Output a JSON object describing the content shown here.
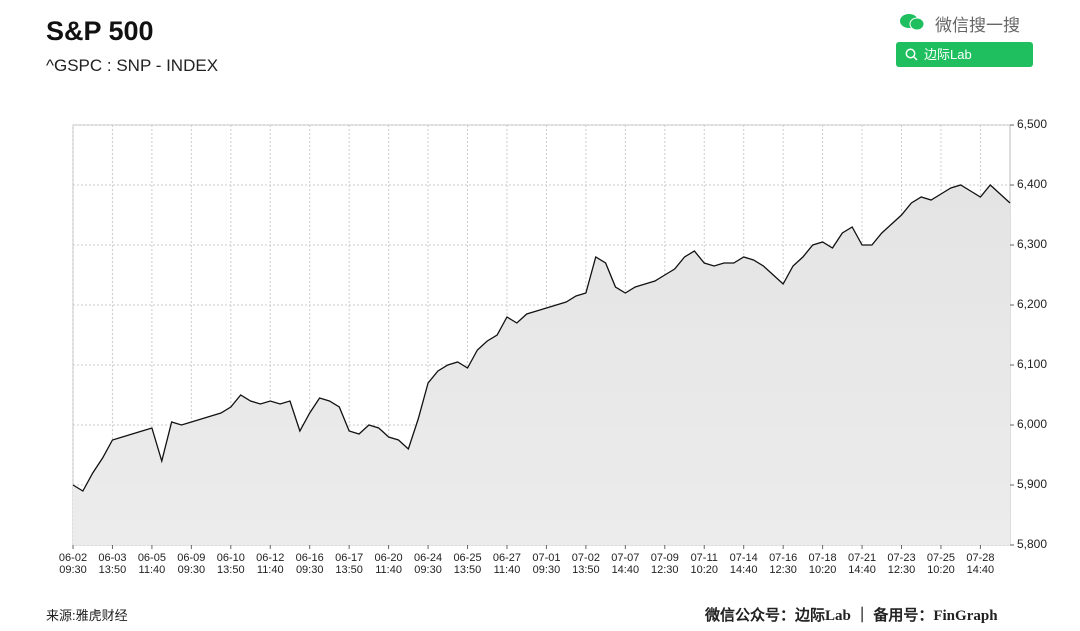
{
  "header": {
    "title": "S&P 500",
    "subtitle": "^GSPC : SNP - INDEX"
  },
  "watermark": {
    "search_label": "微信搜一搜",
    "search_button": "边际Lab"
  },
  "footer": {
    "source": "来源:雅虎财经",
    "credit": "微信公众号：边际Lab ｜ 备用号：FinGraph"
  },
  "chart_data": {
    "type": "line",
    "area": true,
    "color": "#111111",
    "grid": true,
    "categories": [
      "06-02\n09:30",
      null,
      null,
      null,
      "06-03\n13:50",
      null,
      null,
      null,
      "06-05\n11:40",
      null,
      null,
      null,
      "06-09\n09:30",
      null,
      null,
      null,
      "06-10\n13:50",
      null,
      null,
      null,
      "06-12\n11:40",
      null,
      null,
      null,
      "06-16\n09:30",
      null,
      null,
      null,
      "06-17\n13:50",
      null,
      null,
      null,
      "06-20\n11:40",
      null,
      null,
      null,
      "06-24\n09:30",
      null,
      null,
      null,
      "06-25\n13:50",
      null,
      null,
      null,
      "06-27\n11:40",
      null,
      null,
      null,
      "07-01\n09:30",
      null,
      null,
      null,
      "07-02\n13:50",
      null,
      null,
      null,
      "07-07\n14:40",
      null,
      null,
      null,
      "07-09\n12:30",
      null,
      null,
      null,
      "07-11\n10:20",
      null,
      null,
      null,
      "07-14\n14:40",
      null,
      null,
      null,
      "07-16\n12:30",
      null,
      null,
      null,
      "07-18\n10:20",
      null,
      null,
      null,
      "07-21\n14:40",
      null,
      null,
      null,
      "07-23\n12:30",
      null,
      null,
      null,
      "07-25\n10:20",
      null,
      null,
      null,
      "07-28\n14:40",
      null,
      null,
      null
    ],
    "values": [
      5900,
      5890,
      5920,
      5945,
      5975,
      5980,
      5985,
      5990,
      5995,
      5940,
      6005,
      6000,
      6005,
      6010,
      6015,
      6020,
      6030,
      6050,
      6040,
      6035,
      6040,
      6035,
      6040,
      5990,
      6020,
      6045,
      6040,
      6030,
      5990,
      5985,
      6000,
      5995,
      5980,
      5975,
      5960,
      6010,
      6070,
      6090,
      6100,
      6105,
      6095,
      6125,
      6140,
      6150,
      6180,
      6170,
      6185,
      6190,
      6195,
      6200,
      6205,
      6215,
      6220,
      6280,
      6270,
      6230,
      6220,
      6230,
      6235,
      6240,
      6250,
      6260,
      6280,
      6290,
      6270,
      6265,
      6270,
      6270,
      6280,
      6275,
      6265,
      6250,
      6235,
      6265,
      6280,
      6300,
      6305,
      6295,
      6320,
      6330,
      6300,
      6300,
      6320,
      6335,
      6350,
      6370,
      6380,
      6375,
      6385,
      6395,
      6400,
      6390,
      6380,
      6400,
      6385,
      6370
    ],
    "ylim": [
      5800,
      6500
    ],
    "yticks": [
      {
        "value": 5800,
        "label": "5,800"
      },
      {
        "value": 5900,
        "label": "5,900"
      },
      {
        "value": 6000,
        "label": "6,000"
      },
      {
        "value": 6100,
        "label": "6,100"
      },
      {
        "value": 6200,
        "label": "6,200"
      },
      {
        "value": 6300,
        "label": "6,300"
      },
      {
        "value": 6400,
        "label": "6,400"
      },
      {
        "value": 6500,
        "label": "6,500"
      }
    ]
  }
}
